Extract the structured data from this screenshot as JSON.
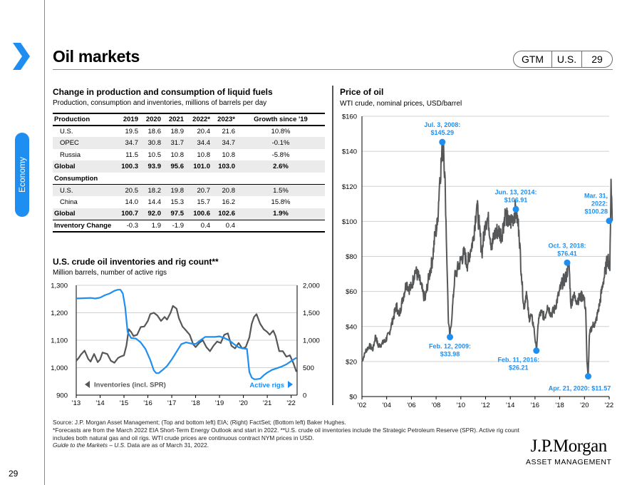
{
  "header": {
    "title": "Oil markets",
    "badge": {
      "guide": "GTM",
      "region": "U.S.",
      "page": "29"
    },
    "section": "Economy",
    "page_number": "29",
    "accent_color": "#1e8ff0"
  },
  "table": {
    "title": "Change in production and consumption of liquid fuels",
    "subtitle": "Production, consumption and inventories, millions of barrels per day",
    "columns": [
      "Production",
      "2019",
      "2020",
      "2021",
      "2022*",
      "2023*",
      "Growth since '19"
    ],
    "rows": [
      {
        "label": "U.S.",
        "values": [
          "19.5",
          "18.6",
          "18.9",
          "20.4",
          "21.6",
          "10.8%"
        ]
      },
      {
        "label": "OPEC",
        "values": [
          "34.7",
          "30.8",
          "31.7",
          "34.4",
          "34.7",
          "-0.1%"
        ]
      },
      {
        "label": "Russia",
        "values": [
          "11.5",
          "10.5",
          "10.8",
          "10.8",
          "10.8",
          "-5.8%"
        ]
      },
      {
        "label": "Global",
        "values": [
          "100.3",
          "93.9",
          "95.6",
          "101.0",
          "103.0",
          "2.6%"
        ]
      },
      {
        "label": "Consumption"
      },
      {
        "label": "U.S.",
        "values": [
          "20.5",
          "18.2",
          "19.8",
          "20.7",
          "20.8",
          "1.5%"
        ]
      },
      {
        "label": "China",
        "values": [
          "14.0",
          "14.4",
          "15.3",
          "15.7",
          "16.2",
          "15.8%"
        ]
      },
      {
        "label": "Global",
        "values": [
          "100.7",
          "92.0",
          "97.5",
          "100.6",
          "102.6",
          "1.9%"
        ]
      },
      {
        "label": "Inventory Change",
        "values": [
          "-0.3",
          "1.9",
          "-1.9",
          "0.4",
          "0.4",
          ""
        ]
      }
    ]
  },
  "chart_data": [
    {
      "id": "inventories-rigs",
      "type": "line",
      "title": "U.S. crude oil inventories and rig count**",
      "subtitle": "Million barrels, number of active rigs",
      "x_ticks": [
        "'13",
        "'14",
        "'15",
        "'16",
        "'17",
        "'18",
        "'19",
        "'20",
        "'21",
        "'22"
      ],
      "x_range": [
        2013,
        2022.25
      ],
      "y_left": {
        "ticks": [
          "900",
          "1,000",
          "1,100",
          "1,200",
          "1,300"
        ],
        "range": [
          900,
          1300
        ]
      },
      "y_right": {
        "ticks": [
          "0",
          "500",
          "1,000",
          "1,500",
          "2,000"
        ],
        "range": [
          0,
          2000
        ]
      },
      "grid": true,
      "series": [
        {
          "name": "Inventories (incl. SPR)",
          "axis": "left",
          "color": "#555759",
          "x": [
            2013.0,
            2013.1,
            2013.2,
            2013.35,
            2013.5,
            2013.6,
            2013.75,
            2013.9,
            2014.0,
            2014.1,
            2014.3,
            2014.45,
            2014.6,
            2014.75,
            2014.85,
            2015.0,
            2015.1,
            2015.2,
            2015.3,
            2015.4,
            2015.55,
            2015.7,
            2015.85,
            2016.0,
            2016.1,
            2016.25,
            2016.4,
            2016.55,
            2016.7,
            2016.8,
            2016.95,
            2017.05,
            2017.2,
            2017.3,
            2017.45,
            2017.6,
            2017.75,
            2017.9,
            2018.0,
            2018.15,
            2018.3,
            2018.45,
            2018.6,
            2018.75,
            2018.9,
            2019.05,
            2019.2,
            2019.35,
            2019.5,
            2019.65,
            2019.8,
            2019.95,
            2020.1,
            2020.25,
            2020.35,
            2020.45,
            2020.55,
            2020.7,
            2020.85,
            2021.0,
            2021.1,
            2021.25,
            2021.35,
            2021.5,
            2021.65,
            2021.8,
            2021.95,
            2022.1,
            2022.22
          ],
          "y": [
            1025,
            1035,
            1048,
            1062,
            1032,
            1022,
            1050,
            1020,
            1030,
            1055,
            1050,
            1025,
            1018,
            1035,
            1040,
            1045,
            1080,
            1140,
            1130,
            1115,
            1120,
            1148,
            1150,
            1170,
            1195,
            1200,
            1190,
            1170,
            1185,
            1175,
            1200,
            1225,
            1215,
            1180,
            1150,
            1135,
            1120,
            1085,
            1075,
            1090,
            1100,
            1075,
            1060,
            1080,
            1095,
            1090,
            1120,
            1125,
            1080,
            1070,
            1090,
            1070,
            1075,
            1110,
            1160,
            1185,
            1195,
            1160,
            1140,
            1130,
            1120,
            1135,
            1115,
            1060,
            1060,
            1040,
            1045,
            1015,
            985
          ]
        },
        {
          "name": "Active rigs",
          "axis": "right",
          "color": "#1e8ff0",
          "x": [
            2013.0,
            2013.3,
            2013.6,
            2013.8,
            2014.0,
            2014.2,
            2014.4,
            2014.6,
            2014.75,
            2014.85,
            2014.95,
            2015.05,
            2015.15,
            2015.3,
            2015.5,
            2015.7,
            2015.9,
            2016.1,
            2016.25,
            2016.35,
            2016.45,
            2016.6,
            2016.8,
            2017.0,
            2017.2,
            2017.4,
            2017.6,
            2017.8,
            2018.0,
            2018.2,
            2018.4,
            2018.6,
            2018.8,
            2019.0,
            2019.2,
            2019.4,
            2019.6,
            2019.8,
            2020.0,
            2020.15,
            2020.25,
            2020.35,
            2020.45,
            2020.55,
            2020.7,
            2020.85,
            2021.0,
            2021.2,
            2021.4,
            2021.6,
            2021.8,
            2022.0,
            2022.22
          ],
          "y": [
            1760,
            1765,
            1770,
            1760,
            1775,
            1820,
            1850,
            1900,
            1920,
            1920,
            1850,
            1600,
            1150,
            1040,
            1030,
            960,
            840,
            640,
            450,
            400,
            400,
            450,
            530,
            650,
            790,
            930,
            960,
            940,
            930,
            1000,
            1060,
            1060,
            1060,
            1070,
            1040,
            1000,
            930,
            870,
            850,
            840,
            420,
            320,
            290,
            290,
            300,
            360,
            410,
            460,
            490,
            520,
            560,
            620,
            680
          ]
        }
      ],
      "legend": [
        "Inventories (incl. SPR)",
        "Active rigs"
      ]
    },
    {
      "id": "oil-price",
      "type": "line",
      "title": "Price of oil",
      "subtitle": "WTI crude, nominal prices, USD/barrel",
      "x_ticks": [
        "'02",
        "'04",
        "'06",
        "'08",
        "'10",
        "'12",
        "'14",
        "'16",
        "'18",
        "'20",
        "'22"
      ],
      "x_range": [
        2002,
        2022
      ],
      "y_ticks": [
        "$0",
        "$20",
        "$40",
        "$60",
        "$80",
        "$100",
        "$120",
        "$140",
        "$160"
      ],
      "y_range": [
        0,
        160
      ],
      "grid": true,
      "series": [
        {
          "name": "WTI crude",
          "color": "#555759",
          "x": [
            2002.0,
            2002.3,
            2002.6,
            2002.9,
            2003.1,
            2003.3,
            2003.6,
            2003.9,
            2004.2,
            2004.5,
            2004.8,
            2005.0,
            2005.3,
            2005.6,
            2005.8,
            2006.0,
            2006.3,
            2006.6,
            2006.9,
            2007.1,
            2007.4,
            2007.7,
            2007.9,
            2008.1,
            2008.3,
            2008.5,
            2008.6,
            2008.75,
            2008.9,
            2009.0,
            2009.12,
            2009.3,
            2009.5,
            2009.7,
            2010.0,
            2010.3,
            2010.5,
            2010.8,
            2011.0,
            2011.3,
            2011.5,
            2011.7,
            2012.0,
            2012.2,
            2012.5,
            2012.7,
            2013.0,
            2013.3,
            2013.6,
            2013.9,
            2014.2,
            2014.45,
            2014.7,
            2014.9,
            2015.1,
            2015.3,
            2015.5,
            2015.7,
            2015.9,
            2016.11,
            2016.3,
            2016.5,
            2016.8,
            2017.0,
            2017.3,
            2017.6,
            2017.9,
            2018.2,
            2018.5,
            2018.75,
            2018.9,
            2019.1,
            2019.3,
            2019.6,
            2019.9,
            2020.1,
            2020.2,
            2020.3,
            2020.4,
            2020.6,
            2020.9,
            2021.2,
            2021.5,
            2021.7,
            2021.9,
            2022.05,
            2022.15,
            2022.25
          ],
          "y": [
            20,
            26,
            29,
            27,
            35,
            29,
            30,
            32,
            36,
            44,
            52,
            46,
            56,
            65,
            62,
            62,
            72,
            68,
            60,
            55,
            68,
            78,
            92,
            98,
            125,
            140,
            145.29,
            115,
            70,
            42,
            33.98,
            48,
            68,
            72,
            78,
            82,
            75,
            84,
            90,
            110,
            96,
            82,
            100,
            102,
            85,
            92,
            95,
            92,
            105,
            98,
            102,
            106.91,
            95,
            70,
            50,
            60,
            45,
            46,
            40,
            26.21,
            45,
            48,
            45,
            52,
            47,
            50,
            58,
            65,
            68,
            76.41,
            52,
            58,
            55,
            56,
            58,
            50,
            20,
            11.57,
            35,
            40,
            42,
            52,
            65,
            72,
            80,
            72,
            124,
            100.28
          ]
        }
      ],
      "annotations": [
        {
          "label": "Jul. 3, 2008:|$145.29",
          "x": 2008.5,
          "y": 145.29,
          "pos": "above"
        },
        {
          "label": "Feb. 12, 2009:|$33.98",
          "x": 2009.12,
          "y": 33.98,
          "pos": "below"
        },
        {
          "label": "Jun. 13, 2014:|$106.91",
          "x": 2014.45,
          "y": 106.91,
          "pos": "above"
        },
        {
          "label": "Feb. 11, 2016:|$26.21",
          "x": 2016.11,
          "y": 26.21,
          "pos": "below-left"
        },
        {
          "label": "Oct. 3, 2018:|$76.41",
          "x": 2018.6,
          "y": 76.41,
          "pos": "above"
        },
        {
          "label": "Apr. 21, 2020: $11.57",
          "x": 2020.3,
          "y": 11.57,
          "pos": "below"
        },
        {
          "label": "Mar. 31,|2022:|$100.28",
          "x": 2022.0,
          "y": 100.28,
          "pos": "above-left"
        }
      ],
      "annotation_color": "#1e8ff0"
    }
  ],
  "footer": {
    "line1": "Source: J.P. Morgan Asset Management; (Top and bottom left) EIA; (Right) FactSet; (Bottom left) Baker Hughes.",
    "line2": "*Forecasts are from the March 2022 EIA Short-Term Energy Outlook and start in 2022. **U.S. crude oil inventories include the Strategic Petroleum Reserve (SPR). Active rig count includes both natural gas and oil rigs. WTI crude prices are continuous contract NYM prices in USD.",
    "guide": "Guide to the Markets – U.S.",
    "asof": " Data are as of March 31, 2022."
  },
  "logo": {
    "line1": "J.P.Morgan",
    "line2": "ASSET MANAGEMENT"
  }
}
